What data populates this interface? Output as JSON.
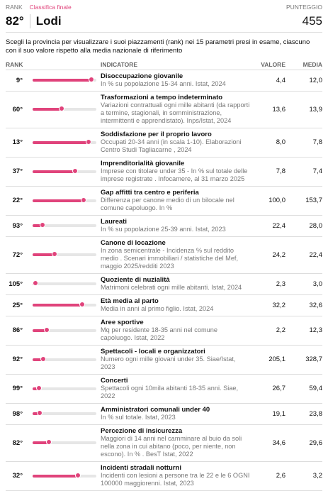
{
  "header": {
    "rank_label": "RANK",
    "section": "Classifica finale",
    "score_label": "PUNTEGGIO",
    "rank": "82°",
    "province": "Lodi",
    "score": "455"
  },
  "intro": "Scegli la provincia per visualizzare i suoi piazzamenti (rank) nei 15 parametri presi in esame, ciascuno con il suo valore rispetto alla media nazionale di riferimento",
  "table": {
    "columns": [
      "RANK",
      "INDICATORE",
      "VALORE",
      "MEDIA"
    ],
    "rows": [
      {
        "rank": {
          "value": 9,
          "label": "9°"
        },
        "title": "Disoccupazione giovanile",
        "description": "In % su popolazione 15-34 anni. Istat, 2024",
        "value": "4,4",
        "average": "12,0"
      },
      {
        "rank": {
          "value": 60,
          "label": "60°"
        },
        "title": "Trasformazioni a tempo indeterminato",
        "description": "Variazioni contrattuali ogni mille abitanti (da rapporti a termine, stagionali, in somministrazione, intermittenti e apprendistato). Inps/Istat, 2024",
        "value": "13,6",
        "average": "13,9"
      },
      {
        "rank": {
          "value": 13,
          "label": "13°"
        },
        "title": "Soddisfazione per il proprio lavoro",
        "description": "Occupati 20-34 anni (in scala 1-10). Elaborazioni Centro Studi Tagliacarne , 2024",
        "value": "8,0",
        "average": "7,8"
      },
      {
        "rank": {
          "value": 37,
          "label": "37°"
        },
        "title": "Imprenditorialità giovanile",
        "description": "Imprese con titolare under 35 - In % sul totale delle imprese registrate . Infocamere, al 31 marzo 2025",
        "value": "7,8",
        "average": "7,4"
      },
      {
        "rank": {
          "value": 22,
          "label": "22°"
        },
        "title": "Gap affitti tra centro e periferia",
        "description": "Differenza per canone medio di un bilocale nel comune capoluogo. In %",
        "value": "100,0",
        "average": "153,7"
      },
      {
        "rank": {
          "value": 93,
          "label": "93°"
        },
        "title": "Laureati",
        "description": "In % su popolazione 25-39 anni. Istat, 2023",
        "value": "22,4",
        "average": "28,0"
      },
      {
        "rank": {
          "value": 72,
          "label": "72°"
        },
        "title": "Canone di locazione",
        "description": "In zona semicentrale - Incidenza % sul reddito medio . Scenari immobiliari / statistiche del Mef, maggio 2025/redditi 2023",
        "value": "24,2",
        "average": "22,4"
      },
      {
        "rank": {
          "value": 105,
          "label": "105°"
        },
        "title": "Quoziente di nuzialità",
        "description": "Matrimoni celebrati ogni mille abitanti. Istat, 2024",
        "value": "2,3",
        "average": "3,0"
      },
      {
        "rank": {
          "value": 25,
          "label": "25°"
        },
        "title": "Età media al parto",
        "description": "Media in anni al primo figlio. Istat, 2024",
        "value": "32,2",
        "average": "32,6"
      },
      {
        "rank": {
          "value": 86,
          "label": "86°"
        },
        "title": "Aree sportive",
        "description": "Mq per residente 18-35 anni nel comune capoluogo. Istat, 2022",
        "value": "2,2",
        "average": "12,3"
      },
      {
        "rank": {
          "value": 92,
          "label": "92°"
        },
        "title": "Spettacoli - locali e organizzatori",
        "description": "Numero ogni mille giovani under 35. Siae/Istat, 2023",
        "value": "205,1",
        "average": "328,7"
      },
      {
        "rank": {
          "value": 99,
          "label": "99°"
        },
        "title": "Concerti",
        "description": "Spettacoli ogni 10mila abitanti 18-35 anni. Siae, 2022",
        "value": "26,7",
        "average": "59,4"
      },
      {
        "rank": {
          "value": 98,
          "label": "98°"
        },
        "title": "Amministratori comunali under 40",
        "description": "In % sul totale. Istat, 2023",
        "value": "19,1",
        "average": "23,8"
      },
      {
        "rank": {
          "value": 82,
          "label": "82°"
        },
        "title": "Percezione di insicurezza",
        "description": "Maggiori di 14 anni nel camminare al buio da soli nella zona in cui abitano (poco, per niente, non escono). In % . BesT Istat, 2022",
        "value": "34,6",
        "average": "29,6"
      },
      {
        "rank": {
          "value": 32,
          "label": "32°"
        },
        "title": "Incidenti stradali notturni",
        "description": "Incidenti con lesioni a persone tra le 22 e le 6 OGNI 100000 maggiorenni. Istat, 2023",
        "value": "2,6",
        "average": "3,2"
      }
    ]
  }
}
